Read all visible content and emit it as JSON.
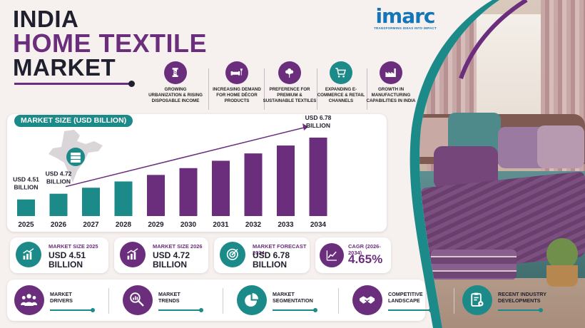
{
  "title": {
    "line1": "INDIA",
    "line2": "HOME TEXTILE",
    "line3": "MARKET"
  },
  "logo": {
    "name": "imarc",
    "tagline": "TRANSFORMING IDEAS INTO IMPACT"
  },
  "drivers": [
    {
      "label": "GROWING URBANIZATION & RISING DISPOSABLE INCOME",
      "icon": "thread-spool-icon"
    },
    {
      "label": "INCREASING DEMAND FOR HOME DÉCOR PRODUCTS",
      "icon": "sofa-lamp-icon"
    },
    {
      "label": "PREFERENCE FOR PREMIUM & SUSTAINABLE TEXTILES",
      "icon": "cotton-flower-icon"
    },
    {
      "label": "EXPANDING E-COMMERCE & RETAIL CHANNELS",
      "icon": "shopping-cart-icon"
    },
    {
      "label": "GROWTH IN MANUFACTURING CAPABILITIES IN INDIA",
      "icon": "factory-icon"
    }
  ],
  "chart_title": "MARKET SIZE (USD BILLION)",
  "chart_data": {
    "type": "bar",
    "title": "MARKET SIZE (USD BILLION)",
    "categories": [
      "2025",
      "2026",
      "2027",
      "2028",
      "2029",
      "2030",
      "2031",
      "2032",
      "2033",
      "2034"
    ],
    "values": [
      4.51,
      4.72,
      4.94,
      5.17,
      5.41,
      5.66,
      5.93,
      6.2,
      6.49,
      6.78
    ],
    "data_labels": [
      {
        "category": "2025",
        "text": "USD 4.51 BILLION"
      },
      {
        "category": "2026",
        "text": "USD 4.72 BILLION"
      },
      {
        "category": "2034",
        "text": "USD 6.78 BILLION"
      }
    ],
    "colors": [
      "#1d8a8a",
      "#1d8a8a",
      "#1d8a8a",
      "#1d8a8a",
      "#6b2e7d",
      "#6b2e7d",
      "#6b2e7d",
      "#6b2e7d",
      "#6b2e7d",
      "#6b2e7d"
    ],
    "trend_arrow": true,
    "grid": false
  },
  "stats": [
    {
      "label": "MARKET SIZE 2025",
      "value_line1": "USD 4.51",
      "value_line2": "BILLION",
      "icon": "bar-chart-up-icon"
    },
    {
      "label": "MARKET SIZE 2026",
      "value_line1": "USD 4.72",
      "value_line2": "BILLION",
      "icon": "bar-chart-up-icon"
    },
    {
      "label": "MARKET FORECAST 2034",
      "value_line1": "USD 6.78",
      "value_line2": "BILLION",
      "icon": "target-icon"
    },
    {
      "label": "CAGR (2026-2034)",
      "value": "4.65%",
      "icon": "growth-chart-icon"
    }
  ],
  "menu": [
    {
      "line1": "MARKET",
      "line2": "DRIVERS",
      "icon": "people-group-icon"
    },
    {
      "line1": "MARKET",
      "line2": "TRENDS",
      "icon": "magnifier-chart-icon"
    },
    {
      "line1": "MARKET",
      "line2": "SEGMENTATION",
      "icon": "pie-chart-icon"
    },
    {
      "line1": "COMPETITIVE",
      "line2": "LANDSCAPE",
      "icon": "handshake-icon"
    },
    {
      "line1": "RECENT INDUSTRY",
      "line2": "DEVELOPMENTS",
      "icon": "clipboard-gear-icon"
    }
  ],
  "colors": {
    "purple": "#6b2e7d",
    "teal": "#1d8a8a",
    "dark": "#1f1f2e",
    "logo_blue": "#1475b8"
  }
}
